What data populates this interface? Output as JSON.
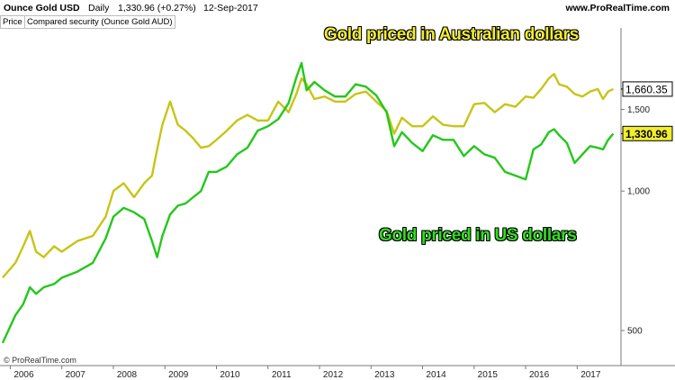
{
  "header": {
    "instrument": "Ounce Gold USD",
    "period": "Daily",
    "price": "1,330.96 (+0.27%)",
    "date": "12-Sep-2017",
    "site": "www.ProRealTime.com"
  },
  "subheader": {
    "price_tab": "Price",
    "compared_tab": "Compared security (Ounce Gold AUD)"
  },
  "copyright": "© ProRealTime.com",
  "annotations": {
    "aud": "Gold priced in Australian dollars",
    "usd": "Gold priced in US dollars"
  },
  "colors": {
    "aud_line": "#c8c417",
    "usd_line": "#23c81a",
    "usd_label_bg": "#f2ed2e",
    "axis": "#7a7a7a"
  },
  "chart_data": {
    "type": "line",
    "y_scale": "log",
    "ylim": [
      420,
      2250
    ],
    "xlim": [
      2005.8,
      2017.85
    ],
    "y_ticks": [
      {
        "value": 500,
        "label": "500"
      },
      {
        "value": 1000,
        "label": "1,000"
      },
      {
        "value": 1500,
        "label": "1,500"
      }
    ],
    "x_ticks": [
      {
        "value": 2006,
        "label": "2006"
      },
      {
        "value": 2007,
        "label": "2007"
      },
      {
        "value": 2008,
        "label": "2008"
      },
      {
        "value": 2009,
        "label": "2009"
      },
      {
        "value": 2010,
        "label": "2010"
      },
      {
        "value": 2011,
        "label": "2011"
      },
      {
        "value": 2012,
        "label": "2012"
      },
      {
        "value": 2013,
        "label": "2013"
      },
      {
        "value": 2014,
        "label": "2014"
      },
      {
        "value": 2015,
        "label": "2015"
      },
      {
        "value": 2016,
        "label": "2016"
      },
      {
        "value": 2017,
        "label": "2017"
      }
    ],
    "last_values": [
      {
        "series": "aud",
        "value": 1660.35,
        "label": "1,660.35"
      },
      {
        "series": "usd",
        "value": 1330.96,
        "label": "1,330.96"
      }
    ],
    "series": [
      {
        "key": "aud",
        "x": [
          2005.85,
          2006.1,
          2006.25,
          2006.38,
          2006.5,
          2006.65,
          2006.85,
          2007.0,
          2007.3,
          2007.6,
          2007.85,
          2008.0,
          2008.2,
          2008.4,
          2008.6,
          2008.75,
          2008.85,
          2008.95,
          2009.1,
          2009.25,
          2009.4,
          2009.55,
          2009.7,
          2009.85,
          2010.0,
          2010.2,
          2010.4,
          2010.6,
          2010.8,
          2011.0,
          2011.2,
          2011.4,
          2011.55,
          2011.65,
          2011.75,
          2011.9,
          2012.1,
          2012.3,
          2012.5,
          2012.7,
          2012.9,
          2013.1,
          2013.3,
          2013.45,
          2013.6,
          2013.8,
          2014.0,
          2014.2,
          2014.4,
          2014.6,
          2014.8,
          2015.0,
          2015.2,
          2015.4,
          2015.6,
          2015.8,
          2016.0,
          2016.15,
          2016.3,
          2016.45,
          2016.55,
          2016.65,
          2016.8,
          2016.95,
          2017.1,
          2017.25,
          2017.4,
          2017.5,
          2017.6,
          2017.7
        ],
        "y": [
          650,
          700,
          760,
          820,
          740,
          720,
          760,
          740,
          780,
          800,
          880,
          1000,
          1040,
          970,
          1040,
          1080,
          1230,
          1390,
          1560,
          1390,
          1350,
          1300,
          1240,
          1250,
          1290,
          1350,
          1420,
          1460,
          1420,
          1420,
          1560,
          1480,
          1620,
          1750,
          1700,
          1580,
          1600,
          1560,
          1560,
          1620,
          1640,
          1560,
          1490,
          1330,
          1440,
          1380,
          1380,
          1450,
          1390,
          1380,
          1380,
          1540,
          1550,
          1480,
          1540,
          1520,
          1600,
          1590,
          1660,
          1750,
          1790,
          1700,
          1680,
          1620,
          1600,
          1640,
          1660,
          1580,
          1640,
          1660
        ]
      },
      {
        "key": "usd",
        "x": [
          2005.85,
          2006.1,
          2006.25,
          2006.38,
          2006.5,
          2006.65,
          2006.85,
          2007.0,
          2007.3,
          2007.6,
          2007.85,
          2008.0,
          2008.2,
          2008.4,
          2008.6,
          2008.75,
          2008.85,
          2008.95,
          2009.1,
          2009.25,
          2009.4,
          2009.55,
          2009.7,
          2009.85,
          2010.0,
          2010.2,
          2010.4,
          2010.6,
          2010.8,
          2011.0,
          2011.2,
          2011.4,
          2011.55,
          2011.65,
          2011.75,
          2011.9,
          2012.1,
          2012.3,
          2012.5,
          2012.7,
          2012.9,
          2013.1,
          2013.3,
          2013.45,
          2013.6,
          2013.8,
          2014.0,
          2014.2,
          2014.4,
          2014.6,
          2014.8,
          2015.0,
          2015.2,
          2015.4,
          2015.6,
          2015.8,
          2016.0,
          2016.15,
          2016.3,
          2016.45,
          2016.55,
          2016.65,
          2016.8,
          2016.95,
          2017.1,
          2017.25,
          2017.4,
          2017.5,
          2017.6,
          2017.7
        ],
        "y": [
          470,
          540,
          570,
          620,
          600,
          620,
          630,
          650,
          670,
          700,
          790,
          880,
          920,
          900,
          870,
          780,
          720,
          800,
          890,
          930,
          940,
          970,
          1000,
          1100,
          1100,
          1130,
          1200,
          1240,
          1350,
          1380,
          1430,
          1550,
          1760,
          1890,
          1650,
          1720,
          1650,
          1600,
          1600,
          1700,
          1680,
          1610,
          1480,
          1250,
          1340,
          1270,
          1220,
          1320,
          1290,
          1290,
          1190,
          1250,
          1200,
          1180,
          1100,
          1080,
          1060,
          1230,
          1260,
          1340,
          1360,
          1320,
          1270,
          1150,
          1200,
          1250,
          1240,
          1230,
          1290,
          1330
        ]
      }
    ]
  }
}
